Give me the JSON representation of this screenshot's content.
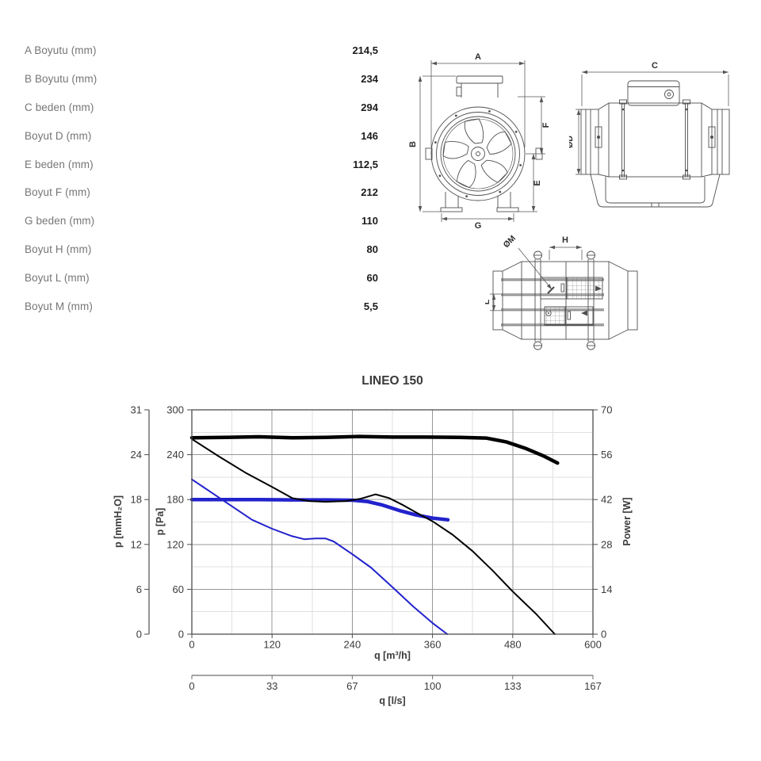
{
  "specs": {
    "rows": [
      {
        "label": "A Boyutu (mm)",
        "value": "214,5"
      },
      {
        "label": "B Boyutu (mm)",
        "value": "234"
      },
      {
        "label": "C beden (mm)",
        "value": "294"
      },
      {
        "label": "Boyut D (mm)",
        "value": "146"
      },
      {
        "label": "E beden (mm)",
        "value": "112,5"
      },
      {
        "label": "Boyut F (mm)",
        "value": "212"
      },
      {
        "label": "G beden (mm)",
        "value": "110"
      },
      {
        "label": "Boyut H (mm)",
        "value": "80"
      },
      {
        "label": "Boyut L (mm)",
        "value": "60"
      },
      {
        "label": "Boyut M (mm)",
        "value": "5,5"
      }
    ]
  },
  "drawings": {
    "front_view": {
      "dim_a": "A",
      "dim_b": "B",
      "dim_f": "F",
      "dim_e": "E",
      "dim_g": "G"
    },
    "side_view": {
      "dim_c": "C",
      "dim_d": "ØD"
    },
    "top_view": {
      "dim_m": "ØM",
      "dim_h": "H",
      "dim_l": "L"
    }
  },
  "chart_data": {
    "type": "line",
    "title": "LINEO 150",
    "x_axis_primary": {
      "label": "q [m³/h]",
      "ticks": [
        0,
        120,
        240,
        360,
        480,
        600
      ],
      "range": [
        0,
        600
      ],
      "minor_step": 60
    },
    "x_axis_secondary": {
      "label": "q [l/s]",
      "ticks": [
        "0",
        "33",
        "67",
        "100",
        "133",
        "167"
      ]
    },
    "y_axis_pa": {
      "label": "p [Pa]",
      "ticks": [
        0,
        60,
        120,
        180,
        240,
        300
      ],
      "range": [
        0,
        300
      ],
      "minor_step": 30
    },
    "y_axis_mmh2o": {
      "label": "p [mmH₂O]",
      "ticks": [
        0,
        6,
        12,
        18,
        24,
        31
      ]
    },
    "y_axis_power": {
      "label": "Power [W]",
      "ticks": [
        0,
        14,
        28,
        42,
        56,
        70
      ],
      "range": [
        0,
        70
      ]
    },
    "grid": true,
    "legend": "none",
    "series": [
      {
        "name": "power-low-speed",
        "color": "#2222cc",
        "width": 4.5,
        "axis": "power",
        "points": [
          [
            0,
            42
          ],
          [
            50,
            42
          ],
          [
            100,
            42
          ],
          [
            150,
            41.9
          ],
          [
            200,
            41.9
          ],
          [
            240,
            41.8
          ],
          [
            262,
            41.4
          ],
          [
            285,
            40.3
          ],
          [
            310,
            38.6
          ],
          [
            335,
            37.2
          ],
          [
            360,
            36.2
          ],
          [
            383,
            35.7
          ]
        ]
      },
      {
        "name": "pressure-low-speed",
        "color": "#2222cc",
        "width": 2,
        "axis": "pa",
        "points": [
          [
            0,
            207
          ],
          [
            30,
            189
          ],
          [
            60,
            171
          ],
          [
            90,
            153
          ],
          [
            120,
            141
          ],
          [
            150,
            131
          ],
          [
            168,
            127
          ],
          [
            185,
            128
          ],
          [
            200,
            128
          ],
          [
            212,
            124
          ],
          [
            240,
            107
          ],
          [
            268,
            89
          ],
          [
            300,
            63
          ],
          [
            330,
            38
          ],
          [
            360,
            15
          ],
          [
            382,
            0
          ]
        ]
      },
      {
        "name": "pressure-high-speed",
        "color": "#000000",
        "width": 2,
        "axis": "pa",
        "points": [
          [
            0,
            261
          ],
          [
            40,
            238
          ],
          [
            80,
            216
          ],
          [
            120,
            197
          ],
          [
            150,
            182
          ],
          [
            175,
            178
          ],
          [
            200,
            177
          ],
          [
            230,
            178
          ],
          [
            252,
            181
          ],
          [
            275,
            187
          ],
          [
            295,
            182
          ],
          [
            315,
            173
          ],
          [
            335,
            163
          ],
          [
            360,
            151
          ],
          [
            390,
            133
          ],
          [
            420,
            111
          ],
          [
            450,
            85
          ],
          [
            480,
            57
          ],
          [
            515,
            27
          ],
          [
            543,
            0
          ]
        ]
      },
      {
        "name": "power-high-speed",
        "color": "#000000",
        "width": 4.5,
        "axis": "power",
        "points": [
          [
            0,
            61.3
          ],
          [
            50,
            61.4
          ],
          [
            100,
            61.6
          ],
          [
            150,
            61.3
          ],
          [
            200,
            61.4
          ],
          [
            250,
            61.7
          ],
          [
            300,
            61.5
          ],
          [
            350,
            61.5
          ],
          [
            400,
            61.4
          ],
          [
            440,
            61.2
          ],
          [
            470,
            60
          ],
          [
            500,
            57.9
          ],
          [
            525,
            55.7
          ],
          [
            547,
            53.4
          ]
        ]
      }
    ]
  }
}
